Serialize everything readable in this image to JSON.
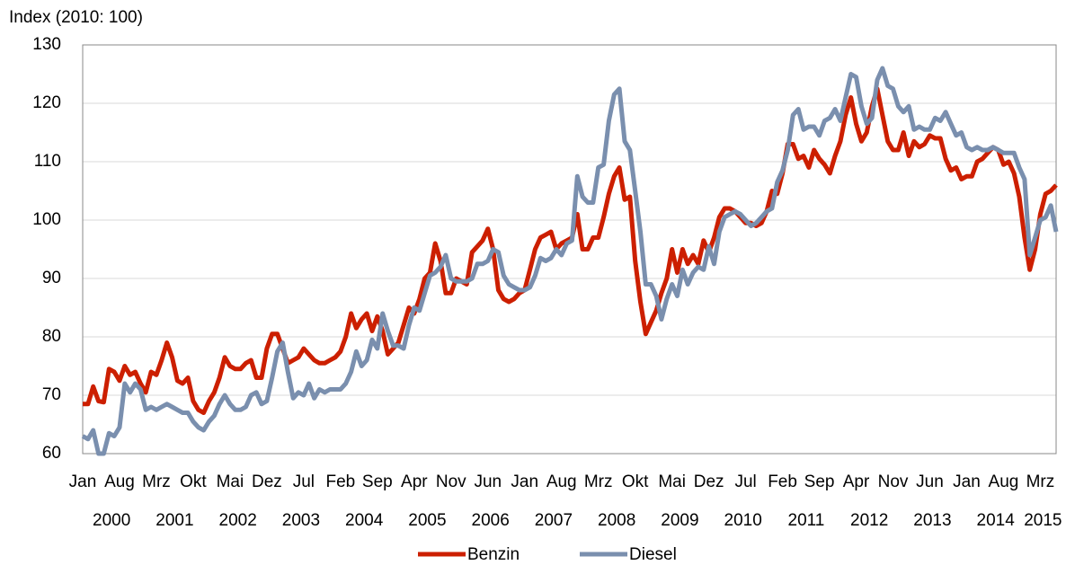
{
  "chart_data": {
    "type": "line",
    "y_label": "Index (2010: 100)",
    "categories": [
      "Jan",
      null,
      null,
      null,
      null,
      null,
      null,
      "Aug",
      null,
      null,
      null,
      null,
      null,
      null,
      "Mrz",
      null,
      null,
      null,
      null,
      null,
      null,
      "Okt",
      null,
      null,
      null,
      null,
      null,
      null,
      "Mai",
      null,
      null,
      null,
      null,
      null,
      null,
      "Dez",
      null,
      null,
      null,
      null,
      null,
      null,
      "Jul",
      null,
      null,
      null,
      null,
      null,
      null,
      "Feb",
      null,
      null,
      null,
      null,
      null,
      null,
      "Sep",
      null,
      null,
      null,
      null,
      null,
      null,
      "Apr",
      null,
      null,
      null,
      null,
      null,
      null,
      "Nov",
      null,
      null,
      null,
      null,
      null,
      null,
      "Jun",
      null,
      null,
      null,
      null,
      null,
      null,
      "Jan",
      null,
      null,
      null,
      null,
      null,
      null,
      "Aug",
      null,
      null,
      null,
      null,
      null,
      null,
      "Mrz",
      null,
      null,
      null,
      null,
      null,
      null,
      "Okt",
      null,
      null,
      null,
      null,
      null,
      null,
      "Mai",
      null,
      null,
      null,
      null,
      null,
      null,
      "Dez",
      null,
      null,
      null,
      null,
      null,
      null,
      "Jul",
      null,
      null,
      null,
      null,
      null,
      null,
      "Feb",
      null,
      null,
      null,
      null,
      null,
      null,
      "Sep",
      null,
      null,
      null,
      null,
      null,
      null,
      "Apr",
      null,
      null,
      null,
      null,
      null,
      null,
      "Nov",
      null,
      null,
      null,
      null,
      null,
      null,
      "Jun",
      null,
      null,
      null,
      null,
      null,
      null,
      "Jan",
      null,
      null,
      null,
      null,
      null,
      null,
      "Aug",
      null,
      null,
      null,
      null,
      null,
      null,
      "Mrz",
      null,
      null,
      null
    ],
    "years": [
      "2000",
      "2001",
      "2002",
      "2003",
      "2004",
      "2005",
      "2006",
      "2007",
      "2008",
      "2009",
      "2010",
      "2011",
      "2012",
      "2013",
      "2014",
      "2015"
    ],
    "series": [
      {
        "name": "Benzin",
        "color": "#cc1f00",
        "values": [
          68.5,
          68.5,
          71.5,
          69,
          68.8,
          74.5,
          74,
          72.5,
          75,
          73.5,
          74,
          72,
          70.5,
          74,
          73.5,
          76,
          79,
          76.5,
          72.5,
          72,
          73,
          69,
          67.5,
          67,
          69,
          70.5,
          73,
          76.5,
          75,
          74.5,
          74.5,
          75.5,
          76,
          73,
          73,
          78,
          80.5,
          80.5,
          78,
          75.5,
          76,
          76.5,
          78,
          77,
          76,
          75.5,
          75.5,
          76,
          76.5,
          77.5,
          80,
          84,
          81.5,
          83,
          84,
          81,
          83.5,
          81,
          77,
          78,
          79,
          82,
          85,
          84,
          86.5,
          90,
          91,
          96,
          93,
          87.5,
          87.5,
          90,
          89.5,
          89,
          94.5,
          95.5,
          96.5,
          98.5,
          95,
          88,
          86.5,
          86,
          86.5,
          87.5,
          88,
          91.5,
          95,
          97,
          97.5,
          98,
          95,
          96,
          96.5,
          97,
          101,
          95,
          95,
          97,
          97,
          100.5,
          104.5,
          107.5,
          109,
          103.5,
          104,
          93,
          86,
          80.5,
          82.5,
          84.5,
          87.5,
          90,
          95,
          91,
          95,
          92.5,
          94,
          92.5,
          96.5,
          94.5,
          97,
          100.5,
          102,
          102,
          101.5,
          100.5,
          99.5,
          99.5,
          99,
          99.5,
          101.5,
          105,
          104.5,
          108,
          113,
          113,
          110.5,
          111,
          109,
          112,
          110.5,
          109.5,
          108,
          111,
          113.5,
          118,
          121,
          116.5,
          113.5,
          115,
          119.5,
          122.5,
          118,
          113.5,
          112,
          112,
          115,
          111,
          113.5,
          112.5,
          113,
          114.5,
          114,
          114,
          110.5,
          108.5,
          109,
          107,
          107.5,
          107.5,
          110,
          110.5,
          111.5,
          112.5,
          112,
          109.5,
          110,
          108,
          104,
          97,
          91.5,
          95,
          101,
          104.5,
          105,
          106
        ]
      },
      {
        "name": "Diesel",
        "color": "#7a8fae",
        "values": [
          63,
          62.5,
          64,
          60,
          60,
          63.5,
          63,
          64.5,
          72,
          70.5,
          72,
          71,
          67.5,
          68,
          67.5,
          68,
          68.5,
          68,
          67.5,
          67,
          67,
          65.5,
          64.5,
          64,
          65.5,
          66.5,
          68.5,
          70,
          68.5,
          67.5,
          67.5,
          68,
          70,
          70.5,
          68.5,
          69,
          73,
          77.5,
          79,
          74,
          69.5,
          70.5,
          70,
          72,
          69.5,
          71,
          70.5,
          71,
          71,
          71,
          72,
          74,
          77.5,
          75,
          76,
          79.5,
          78,
          84,
          81,
          78.5,
          78.5,
          78,
          82,
          85,
          84.5,
          87.5,
          90.5,
          91,
          92,
          94,
          90,
          89.5,
          89.5,
          89.5,
          90,
          92.5,
          92.5,
          93,
          95,
          94.5,
          90.5,
          89,
          88.5,
          88,
          88,
          88.5,
          90.5,
          93.5,
          93,
          93.5,
          95,
          94,
          96,
          96.5,
          107.5,
          104,
          103,
          103,
          109,
          109.5,
          117,
          121.5,
          122.5,
          113.5,
          112,
          105,
          98,
          89,
          89,
          87,
          83,
          86.5,
          89,
          87,
          91.5,
          89,
          91,
          92,
          91.5,
          95.5,
          92.5,
          98,
          100.5,
          101,
          101.5,
          101,
          100,
          99,
          99.5,
          100.5,
          101.5,
          102,
          106.5,
          108.5,
          112,
          118,
          119,
          115.5,
          116,
          116,
          114.5,
          117,
          117.5,
          119,
          117,
          121,
          125,
          124.5,
          119.5,
          116.5,
          117.5,
          124,
          126,
          123,
          122.5,
          119.5,
          118.5,
          119.5,
          115.5,
          116,
          115.5,
          115.5,
          117.5,
          117,
          118.5,
          116.5,
          114.5,
          115,
          112.5,
          112,
          112.5,
          112,
          112,
          112.5,
          112,
          111.5,
          111.5,
          111.5,
          109,
          107,
          94,
          97,
          100,
          100.5,
          102.5,
          98
        ]
      }
    ],
    "ylim": [
      60,
      130
    ],
    "yticks": [
      60,
      70,
      80,
      90,
      100,
      110,
      120,
      130
    ],
    "grid": true,
    "legend": "bottom"
  }
}
